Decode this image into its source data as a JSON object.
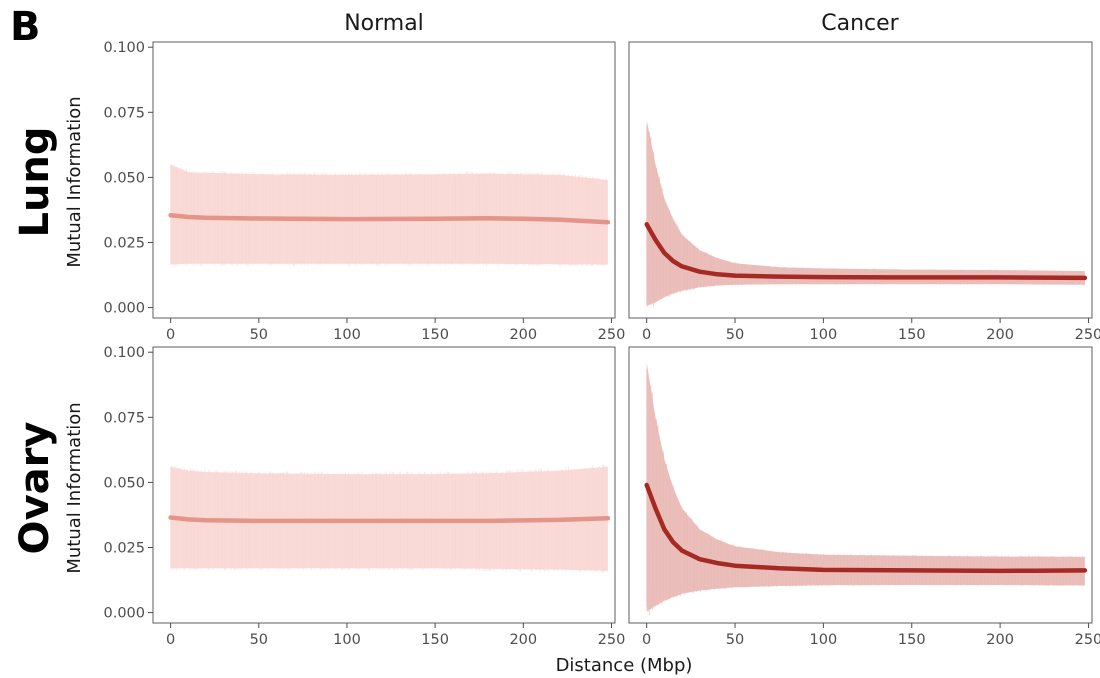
{
  "panel_label": "B",
  "chart_data": {
    "type": "line",
    "layout": "facet_grid",
    "columns": [
      "Normal",
      "Cancer"
    ],
    "rows": [
      "Lung",
      "Ovary"
    ],
    "xlabel": "Distance (Mbp)",
    "ylabel": "Mutual Information",
    "xlim": [
      -10,
      252
    ],
    "ylim": [
      -0.004,
      0.102
    ],
    "xticks": [
      0,
      50,
      100,
      150,
      200,
      250
    ],
    "yticks": [
      0.0,
      0.025,
      0.05,
      0.075,
      0.1
    ],
    "ytick_labels": [
      "0.000",
      "0.025",
      "0.050",
      "0.075",
      "0.100"
    ],
    "grid": false,
    "colors": {
      "normal": "#e5948a",
      "cancer": "#a52a24",
      "normal_band": "#f8d7d3",
      "cancer_band": "#e9b9b6"
    },
    "panels": [
      {
        "row": "Lung",
        "column": "Normal",
        "series_color": "normal",
        "x": [
          0,
          10,
          20,
          50,
          100,
          150,
          180,
          200,
          220,
          248
        ],
        "mean": [
          0.0355,
          0.0348,
          0.0345,
          0.0342,
          0.034,
          0.0341,
          0.0343,
          0.0341,
          0.0338,
          0.0328
        ],
        "lower": [
          0.0165,
          0.0168,
          0.0168,
          0.0168,
          0.0168,
          0.0168,
          0.0168,
          0.0167,
          0.0166,
          0.0165
        ],
        "upper": [
          0.055,
          0.052,
          0.0518,
          0.0512,
          0.051,
          0.0512,
          0.0515,
          0.0512,
          0.051,
          0.049
        ]
      },
      {
        "row": "Lung",
        "column": "Cancer",
        "series_color": "cancer",
        "x": [
          0,
          5,
          10,
          15,
          20,
          30,
          40,
          50,
          75,
          100,
          150,
          200,
          248
        ],
        "mean": [
          0.032,
          0.026,
          0.021,
          0.0178,
          0.0158,
          0.0138,
          0.0128,
          0.0123,
          0.0119,
          0.0117,
          0.0116,
          0.0116,
          0.0114
        ],
        "lower": [
          0.0005,
          0.002,
          0.004,
          0.0055,
          0.0065,
          0.0078,
          0.0085,
          0.0088,
          0.009,
          0.009,
          0.009,
          0.009,
          0.0088
        ],
        "upper": [
          0.072,
          0.055,
          0.042,
          0.034,
          0.028,
          0.022,
          0.019,
          0.017,
          0.0155,
          0.015,
          0.0146,
          0.0144,
          0.014
        ]
      },
      {
        "row": "Ovary",
        "column": "Normal",
        "series_color": "normal",
        "x": [
          0,
          10,
          20,
          50,
          100,
          150,
          180,
          200,
          220,
          248
        ],
        "mean": [
          0.0365,
          0.0358,
          0.0355,
          0.0352,
          0.0352,
          0.0352,
          0.0352,
          0.0354,
          0.0356,
          0.0362
        ],
        "lower": [
          0.017,
          0.017,
          0.017,
          0.017,
          0.017,
          0.017,
          0.0168,
          0.0166,
          0.0165,
          0.016
        ],
        "upper": [
          0.056,
          0.0545,
          0.054,
          0.0535,
          0.0532,
          0.0532,
          0.0535,
          0.054,
          0.0545,
          0.056
        ]
      },
      {
        "row": "Ovary",
        "column": "Cancer",
        "series_color": "cancer",
        "x": [
          0,
          5,
          10,
          15,
          20,
          30,
          40,
          50,
          75,
          100,
          150,
          200,
          220,
          248
        ],
        "mean": [
          0.049,
          0.04,
          0.032,
          0.027,
          0.0238,
          0.0205,
          0.019,
          0.018,
          0.017,
          0.0164,
          0.0162,
          0.016,
          0.0161,
          0.0162
        ],
        "lower": [
          0.0005,
          0.0025,
          0.0045,
          0.006,
          0.0072,
          0.0085,
          0.0092,
          0.0097,
          0.0102,
          0.0105,
          0.0106,
          0.0106,
          0.0105,
          0.0104
        ],
        "upper": [
          0.096,
          0.075,
          0.059,
          0.048,
          0.04,
          0.032,
          0.028,
          0.0255,
          0.0232,
          0.0222,
          0.0218,
          0.0215,
          0.0215,
          0.0214
        ]
      }
    ]
  }
}
